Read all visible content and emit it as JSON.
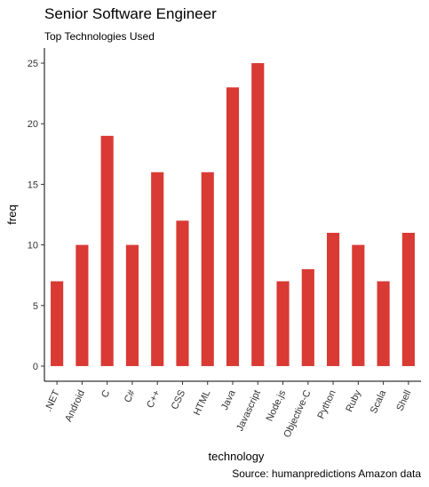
{
  "chart_data": {
    "type": "bar",
    "title": "Senior Software Engineer",
    "subtitle": "Top Technologies Used",
    "caption": "Source: humanpredictions Amazon data",
    "xlabel": "technology",
    "ylabel": "freq",
    "categories": [
      ".NET",
      "Android",
      "C",
      "C#",
      "C++",
      "CSS",
      "HTML",
      "Java",
      "Javascript",
      "Node.js",
      "Objective-C",
      "Python",
      "Ruby",
      "Scala",
      "Shell"
    ],
    "values": [
      7,
      10,
      19,
      10,
      16,
      12,
      16,
      23,
      25,
      7,
      8,
      11,
      10,
      7,
      11
    ],
    "yticks": [
      0,
      5,
      10,
      15,
      20,
      25
    ],
    "ylim": [
      -1.25,
      26.25
    ],
    "bar_color": "#d93a34",
    "grid": false
  }
}
